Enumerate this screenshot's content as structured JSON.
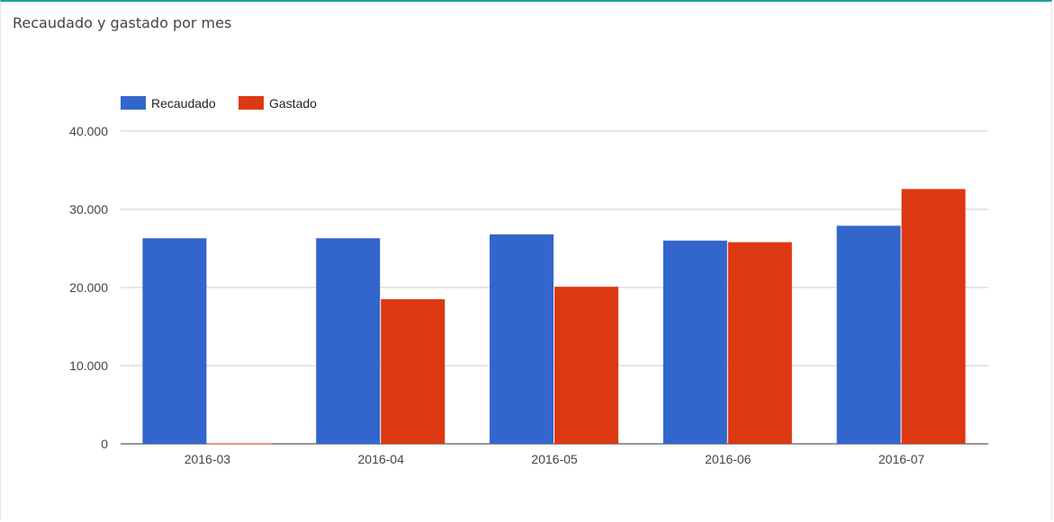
{
  "panel": {
    "title": "Recaudado y gastado por mes"
  },
  "chart_data": {
    "type": "bar",
    "categories": [
      "2016-03",
      "2016-04",
      "2016-05",
      "2016-06",
      "2016-07"
    ],
    "series": [
      {
        "name": "Recaudado",
        "color": "#3366cc",
        "values": [
          26300,
          26300,
          26800,
          26000,
          27900
        ]
      },
      {
        "name": "Gastado",
        "color": "#dc3912",
        "values": [
          50,
          18500,
          20100,
          25800,
          32600
        ]
      }
    ],
    "ylim": [
      0,
      40000
    ],
    "yticks": [
      0,
      10000,
      20000,
      30000,
      40000
    ],
    "ytick_labels": [
      "0",
      "10.000",
      "20.000",
      "30.000",
      "40.000"
    ],
    "grid": true,
    "legend": "top-left"
  }
}
